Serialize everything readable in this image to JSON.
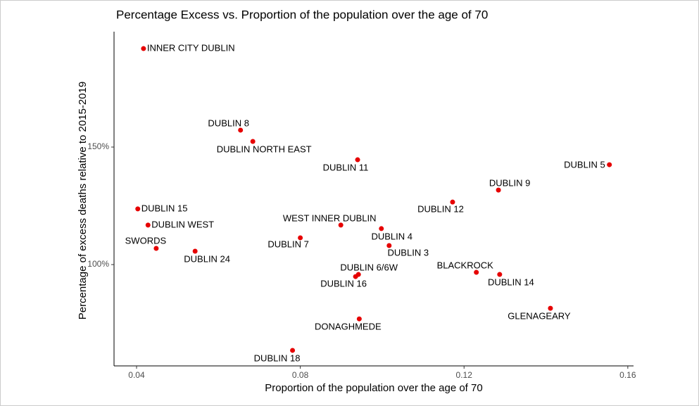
{
  "chart_data": {
    "type": "scatter",
    "title": "Percentage Excess vs. Proportion of the population over the age of 70",
    "xlabel": "Proportion of the population over the age of 70",
    "ylabel": "Percentage of excess deaths relative to 2015-2019",
    "color": "#e60000",
    "labels": [
      "INNER CITY DUBLIN",
      "DUBLIN 8",
      "DUBLIN NORTH EAST",
      "DUBLIN 11",
      "DUBLIN 5",
      "DUBLIN 9",
      "DUBLIN 12",
      "DUBLIN 15",
      "DUBLIN WEST",
      "WEST INNER DUBLIN",
      "DUBLIN 4",
      "DUBLIN 7",
      "DUBLIN 3",
      "SWORDS",
      "DUBLIN 24",
      "DUBLIN 6/6W",
      "DUBLIN 16",
      "BLACKROCK",
      "DUBLIN 14",
      "GLENAGEARY",
      "DONAGHMEDE",
      "DUBLIN 18"
    ],
    "x": [
      0.0417,
      0.0654,
      0.0684,
      0.094,
      0.1555,
      0.1284,
      0.1172,
      0.0403,
      0.0428,
      0.0899,
      0.0998,
      0.08,
      0.1017,
      0.0448,
      0.0543,
      0.0942,
      0.0935,
      0.123,
      0.1287,
      0.1411,
      0.0944,
      0.0781
    ],
    "values": [
      191.9,
      157.2,
      152.4,
      144.6,
      142.5,
      131.7,
      126.6,
      123.7,
      116.8,
      116.8,
      115.3,
      111.4,
      108.1,
      106.9,
      105.7,
      95.8,
      94.9,
      96.7,
      95.8,
      81.4,
      76.9,
      63.5
    ],
    "xlim": [
      0.0345,
      0.1614
    ],
    "ylim": [
      56.9,
      199.1
    ],
    "xticks": [
      0.04,
      0.08,
      0.12,
      0.16
    ],
    "yticks": [
      {
        "value": 100,
        "label": "100%"
      },
      {
        "value": 150,
        "label": "150%"
      }
    ]
  }
}
